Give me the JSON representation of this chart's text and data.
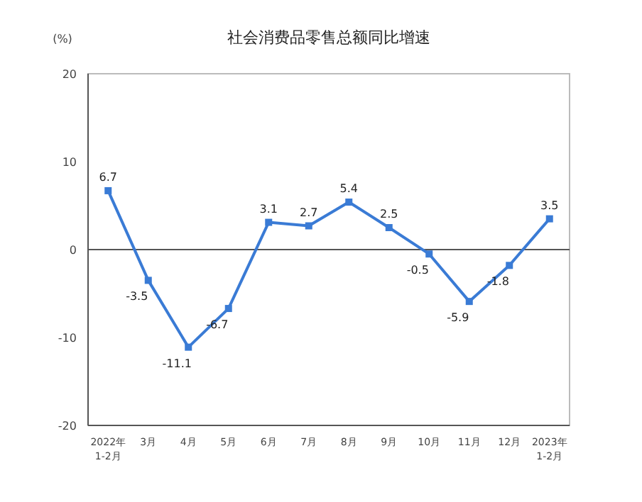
{
  "chart_data": {
    "type": "line",
    "title": "社会消费品零售总额同比增速",
    "ylabel": "(%)",
    "categories": [
      "2022年\n1-2月",
      "3月",
      "4月",
      "5月",
      "6月",
      "7月",
      "8月",
      "9月",
      "10月",
      "11月",
      "12月",
      "2023年\n1-2月"
    ],
    "series": [
      {
        "color": "#3a7bd5",
        "values": [
          6.7,
          -3.5,
          -11.1,
          -6.7,
          3.1,
          2.7,
          5.4,
          2.5,
          -0.5,
          -5.9,
          -1.8,
          3.5
        ]
      }
    ],
    "ylim": [
      -20,
      20
    ],
    "yticks": [
      -20,
      -10,
      0,
      10,
      20
    ],
    "marker": "square",
    "data_labels": true,
    "ref_lines": [
      {
        "axis": "y",
        "value": 0,
        "color": "#555555"
      }
    ]
  }
}
